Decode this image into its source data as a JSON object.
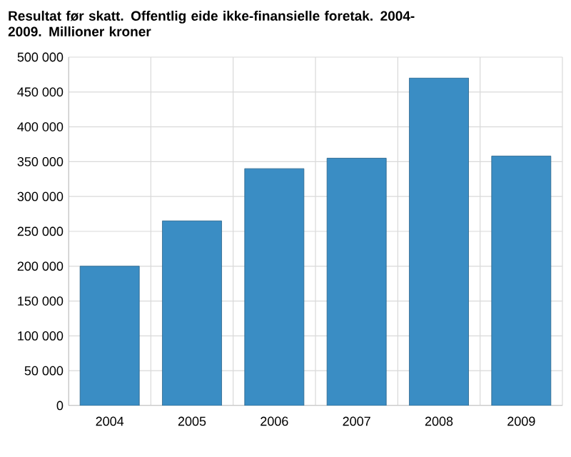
{
  "chart_data": {
    "type": "bar",
    "title": "Resultat før skatt. Offentlig eide ikke-finansielle foretak. 2004-2009. Millioner kroner",
    "categories": [
      "2004",
      "2005",
      "2006",
      "2007",
      "2008",
      "2009"
    ],
    "values": [
      200000,
      265000,
      340000,
      355000,
      470000,
      358000
    ],
    "color": "#3a8dc4",
    "ylim": [
      0,
      500000
    ],
    "yticks": [
      {
        "value": 0,
        "label": "0"
      },
      {
        "value": 50000,
        "label": "50 000"
      },
      {
        "value": 100000,
        "label": "100 000"
      },
      {
        "value": 150000,
        "label": "150 000"
      },
      {
        "value": 200000,
        "label": "200 000"
      },
      {
        "value": 250000,
        "label": "250 000"
      },
      {
        "value": 300000,
        "label": "300 000"
      },
      {
        "value": 350000,
        "label": "350 000"
      },
      {
        "value": 400000,
        "label": "400 000"
      },
      {
        "value": 450000,
        "label": "450 000"
      },
      {
        "value": 500000,
        "label": "500 000"
      }
    ],
    "grid": true
  }
}
